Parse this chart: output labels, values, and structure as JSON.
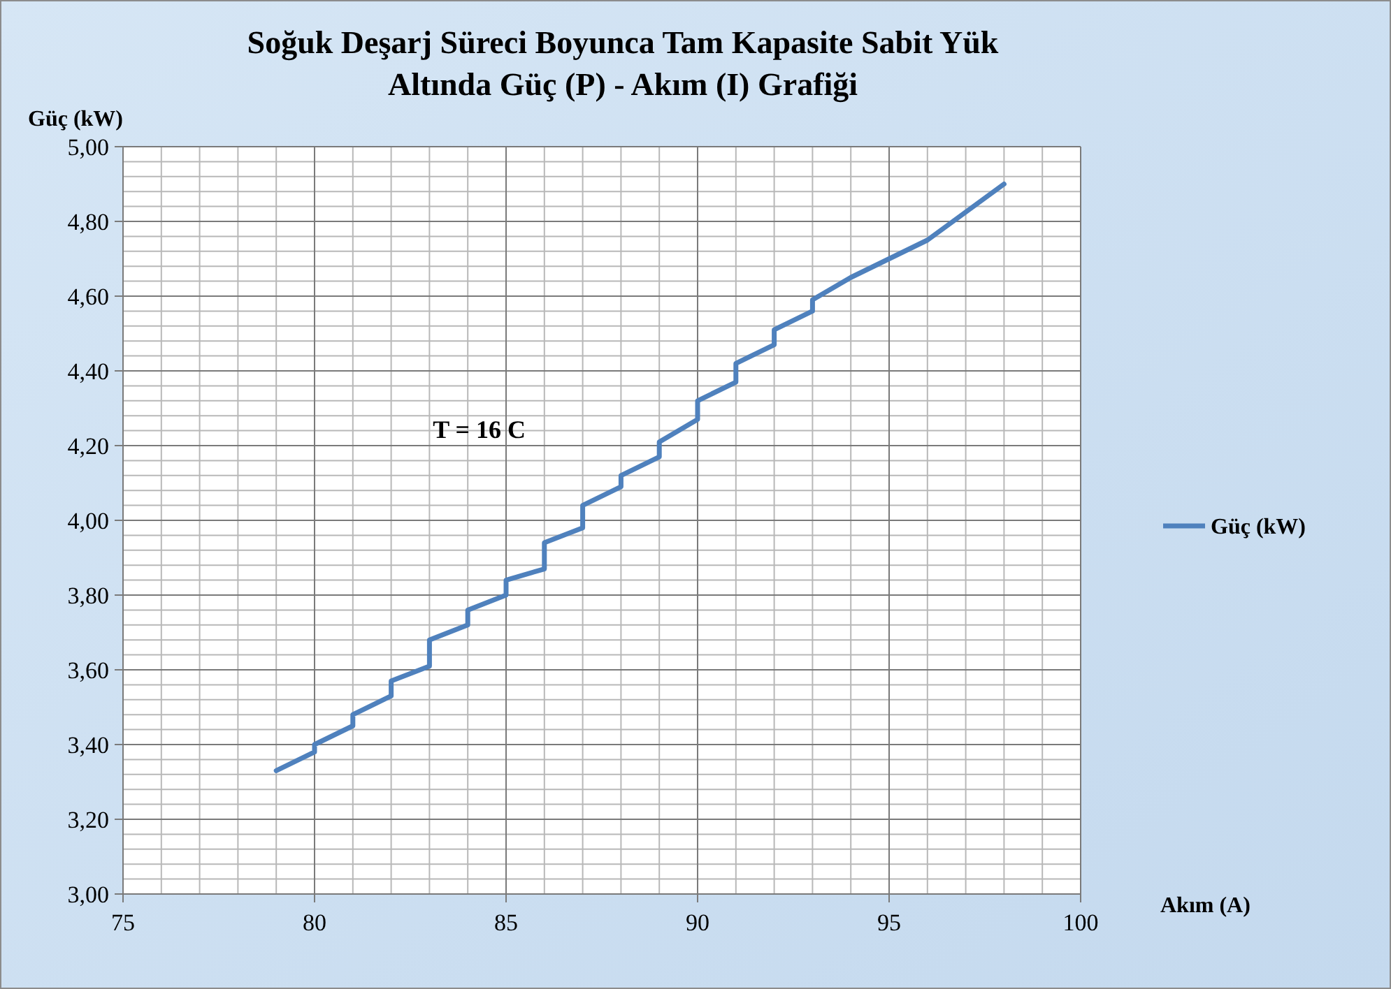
{
  "chart_data": {
    "type": "line",
    "title": "Soğuk Deşarj Süreci Boyunca Tam Kapasite Sabit Yük\nAltında Güç (P) - Akım (I) Grafiği",
    "xlabel": "Akım (A)",
    "ylabel": "Güç (kW)",
    "annotations": [
      "T = 16 C"
    ],
    "series": [
      {
        "name": "Güç (kW)",
        "color": "#4f81bd",
        "x": [
          79,
          80,
          80,
          81,
          81,
          82,
          82,
          83,
          83,
          84,
          84,
          85,
          85,
          86,
          86,
          87,
          87,
          88,
          88,
          89,
          89,
          90,
          90,
          91,
          91,
          92,
          92,
          93,
          93,
          94,
          95,
          96,
          98
        ],
        "values": [
          3.33,
          3.38,
          3.4,
          3.45,
          3.48,
          3.53,
          3.57,
          3.61,
          3.68,
          3.72,
          3.76,
          3.8,
          3.84,
          3.87,
          3.94,
          3.98,
          4.04,
          4.09,
          4.12,
          4.17,
          4.21,
          4.27,
          4.32,
          4.37,
          4.42,
          4.47,
          4.51,
          4.56,
          4.59,
          4.65,
          4.7,
          4.75,
          4.9
        ]
      }
    ],
    "xlim": [
      75,
      100
    ],
    "xticks": [
      75,
      80,
      85,
      90,
      95,
      100
    ],
    "ylim": [
      3,
      5
    ],
    "yticks": [
      {
        "value": 3,
        "label": "3,00"
      },
      {
        "value": 3.2,
        "label": "3,20"
      },
      {
        "value": 3.4,
        "label": "3,40"
      },
      {
        "value": 3.6,
        "label": "3,60"
      },
      {
        "value": 3.8,
        "label": "3,80"
      },
      {
        "value": 4,
        "label": "4,00"
      },
      {
        "value": 4.2,
        "label": "4,20"
      },
      {
        "value": 4.4,
        "label": "4,40"
      },
      {
        "value": 4.6,
        "label": "4,60"
      },
      {
        "value": 4.8,
        "label": "4,80"
      },
      {
        "value": 5,
        "label": "5,00"
      }
    ],
    "grid": true,
    "legend": "right",
    "marker": "none",
    "line_style": "solid"
  }
}
